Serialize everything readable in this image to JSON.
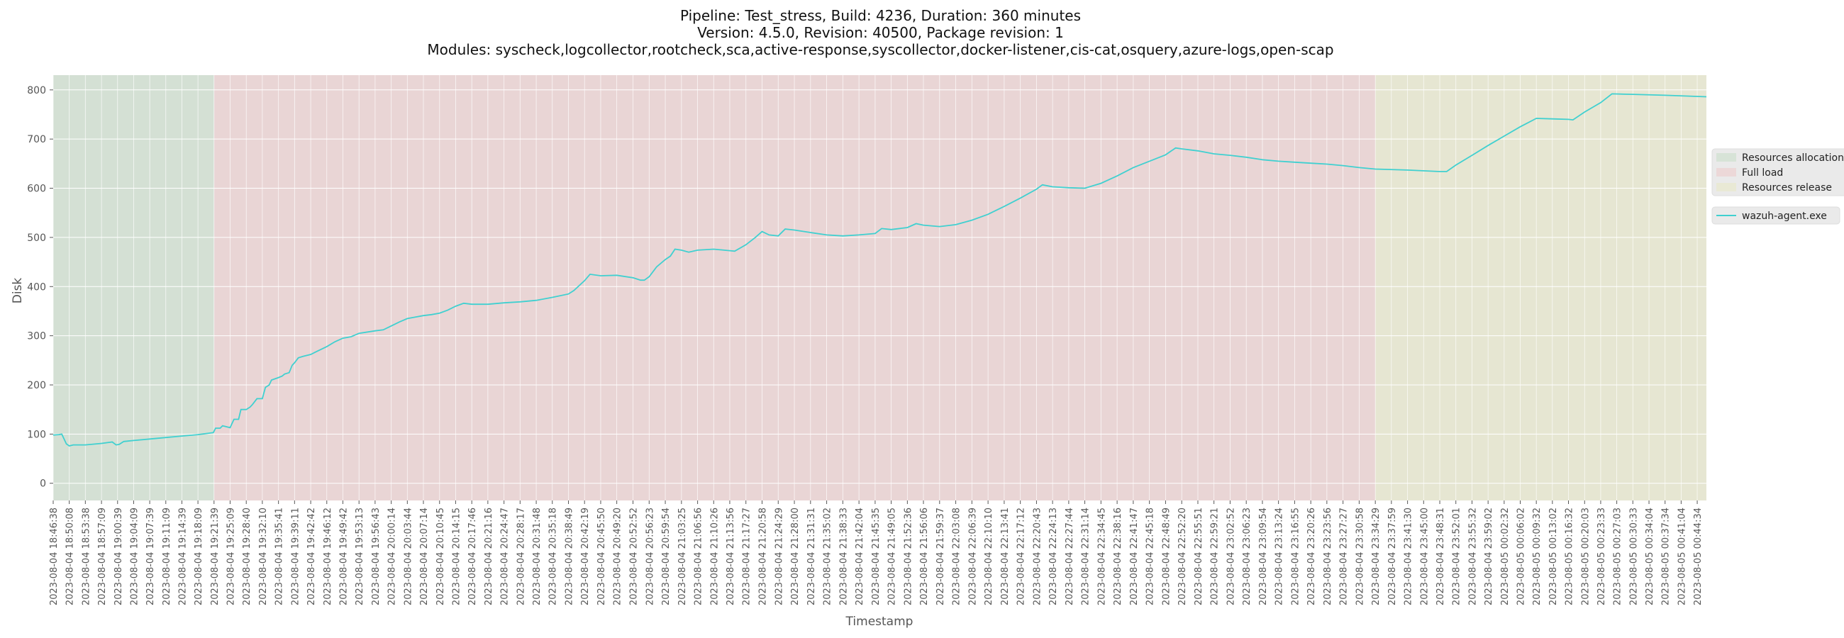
{
  "chart_data": {
    "type": "line",
    "title_lines": [
      "Pipeline: Test_stress, Build: 4236, Duration: 360 minutes",
      "Version: 4.5.0, Revision: 40500, Package revision: 1",
      "Modules: syscheck,logcollector,rootcheck,sca,active-response,syscollector,docker-listener,cis-cat,osquery,azure-logs,open-scap"
    ],
    "xlabel": "Timestamp",
    "ylabel": "Disk",
    "ylim": [
      -35,
      830
    ],
    "yticks": [
      0,
      100,
      200,
      300,
      400,
      500,
      600,
      700,
      800
    ],
    "grid": true,
    "x_start": "2023-08-04 18:46:38",
    "x_end": "2023-08-05 00:46:34",
    "x_tick_labels": [
      "2023-08-04 18:46:38",
      "2023-08-04 18:50:08",
      "2023-08-04 18:53:38",
      "2023-08-04 18:57:09",
      "2023-08-04 19:00:39",
      "2023-08-04 19:04:09",
      "2023-08-04 19:07:39",
      "2023-08-04 19:11:09",
      "2023-08-04 19:14:39",
      "2023-08-04 19:18:09",
      "2023-08-04 19:21:39",
      "2023-08-04 19:25:09",
      "2023-08-04 19:28:40",
      "2023-08-04 19:32:10",
      "2023-08-04 19:35:41",
      "2023-08-04 19:39:11",
      "2023-08-04 19:42:42",
      "2023-08-04 19:46:12",
      "2023-08-04 19:49:42",
      "2023-08-04 19:53:13",
      "2023-08-04 19:56:43",
      "2023-08-04 20:00:14",
      "2023-08-04 20:03:44",
      "2023-08-04 20:07:14",
      "2023-08-04 20:10:45",
      "2023-08-04 20:14:15",
      "2023-08-04 20:17:46",
      "2023-08-04 20:21:16",
      "2023-08-04 20:24:47",
      "2023-08-04 20:28:17",
      "2023-08-04 20:31:48",
      "2023-08-04 20:35:18",
      "2023-08-04 20:38:49",
      "2023-08-04 20:42:19",
      "2023-08-04 20:45:50",
      "2023-08-04 20:49:20",
      "2023-08-04 20:52:52",
      "2023-08-04 20:56:23",
      "2023-08-04 20:59:54",
      "2023-08-04 21:03:25",
      "2023-08-04 21:06:56",
      "2023-08-04 21:10:26",
      "2023-08-04 21:13:56",
      "2023-08-04 21:17:27",
      "2023-08-04 21:20:58",
      "2023-08-04 21:24:29",
      "2023-08-04 21:28:00",
      "2023-08-04 21:31:31",
      "2023-08-04 21:35:02",
      "2023-08-04 21:38:33",
      "2023-08-04 21:42:04",
      "2023-08-04 21:45:35",
      "2023-08-04 21:49:05",
      "2023-08-04 21:52:36",
      "2023-08-04 21:56:06",
      "2023-08-04 21:59:37",
      "2023-08-04 22:03:08",
      "2023-08-04 22:06:39",
      "2023-08-04 22:10:10",
      "2023-08-04 22:13:41",
      "2023-08-04 22:17:12",
      "2023-08-04 22:20:43",
      "2023-08-04 22:24:13",
      "2023-08-04 22:27:44",
      "2023-08-04 22:31:14",
      "2023-08-04 22:34:45",
      "2023-08-04 22:38:16",
      "2023-08-04 22:41:47",
      "2023-08-04 22:45:18",
      "2023-08-04 22:48:49",
      "2023-08-04 22:52:20",
      "2023-08-04 22:55:51",
      "2023-08-04 22:59:21",
      "2023-08-04 23:02:52",
      "2023-08-04 23:06:23",
      "2023-08-04 23:09:54",
      "2023-08-04 23:13:24",
      "2023-08-04 23:16:55",
      "2023-08-04 23:20:26",
      "2023-08-04 23:23:56",
      "2023-08-04 23:27:27",
      "2023-08-04 23:30:58",
      "2023-08-04 23:34:29",
      "2023-08-04 23:37:59",
      "2023-08-04 23:41:30",
      "2023-08-04 23:45:00",
      "2023-08-04 23:48:31",
      "2023-08-04 23:52:01",
      "2023-08-04 23:55:32",
      "2023-08-04 23:59:02",
      "2023-08-05 00:02:32",
      "2023-08-05 00:06:02",
      "2023-08-05 00:09:32",
      "2023-08-05 00:13:02",
      "2023-08-05 00:16:32",
      "2023-08-05 00:20:03",
      "2023-08-05 00:23:33",
      "2023-08-05 00:27:03",
      "2023-08-05 00:30:33",
      "2023-08-05 00:34:04",
      "2023-08-05 00:37:34",
      "2023-08-05 00:41:04",
      "2023-08-05 00:44:34"
    ],
    "phases": [
      {
        "name": "Resources allocation",
        "start": "2023-08-04 18:46:38",
        "end": "2023-08-04 19:21:39",
        "color": "#b5d8b5"
      },
      {
        "name": "Full load",
        "start": "2023-08-04 19:21:39",
        "end": "2023-08-04 23:34:29",
        "color": "#f0b8b8"
      },
      {
        "name": "Resources release",
        "start": "2023-08-04 23:34:29",
        "end": "2023-08-05 00:46:34",
        "color": "#e8e8b0"
      }
    ],
    "series": [
      {
        "name": "wazuh-agent.exe",
        "color": "#40d0d0",
        "points": [
          [
            "2023-08-04 18:46:38",
            98
          ],
          [
            "2023-08-04 18:47:50",
            99
          ],
          [
            "2023-08-04 18:48:30",
            100
          ],
          [
            "2023-08-04 18:49:30",
            80
          ],
          [
            "2023-08-04 18:50:08",
            76
          ],
          [
            "2023-08-04 18:51:00",
            78
          ],
          [
            "2023-08-04 18:53:38",
            78
          ],
          [
            "2023-08-04 18:57:09",
            81
          ],
          [
            "2023-08-04 18:59:30",
            84
          ],
          [
            "2023-08-04 19:00:20",
            78
          ],
          [
            "2023-08-04 19:01:00",
            79
          ],
          [
            "2023-08-04 19:02:00",
            85
          ],
          [
            "2023-08-04 19:04:09",
            87
          ],
          [
            "2023-08-04 19:07:39",
            90
          ],
          [
            "2023-08-04 19:11:09",
            93
          ],
          [
            "2023-08-04 19:14:39",
            96
          ],
          [
            "2023-08-04 19:18:09",
            99
          ],
          [
            "2023-08-04 19:21:30",
            103
          ],
          [
            "2023-08-04 19:22:00",
            112
          ],
          [
            "2023-08-04 19:23:00",
            112
          ],
          [
            "2023-08-04 19:23:30",
            117
          ],
          [
            "2023-08-04 19:25:09",
            113
          ],
          [
            "2023-08-04 19:26:00",
            130
          ],
          [
            "2023-08-04 19:27:00",
            130
          ],
          [
            "2023-08-04 19:27:30",
            150
          ],
          [
            "2023-08-04 19:28:40",
            150
          ],
          [
            "2023-08-04 19:29:30",
            155
          ],
          [
            "2023-08-04 19:30:00",
            160
          ],
          [
            "2023-08-04 19:31:00",
            172
          ],
          [
            "2023-08-04 19:32:10",
            172
          ],
          [
            "2023-08-04 19:32:50",
            195
          ],
          [
            "2023-08-04 19:33:40",
            200
          ],
          [
            "2023-08-04 19:34:10",
            210
          ],
          [
            "2023-08-04 19:35:41",
            215
          ],
          [
            "2023-08-04 19:36:30",
            218
          ],
          [
            "2023-08-04 19:37:00",
            222
          ],
          [
            "2023-08-04 19:38:00",
            225
          ],
          [
            "2023-08-04 19:38:40",
            240
          ],
          [
            "2023-08-04 19:39:11",
            245
          ],
          [
            "2023-08-04 19:40:00",
            255
          ],
          [
            "2023-08-04 19:41:00",
            258
          ],
          [
            "2023-08-04 19:42:42",
            262
          ],
          [
            "2023-08-04 19:44:00",
            268
          ],
          [
            "2023-08-04 19:46:12",
            278
          ],
          [
            "2023-08-04 19:48:00",
            288
          ],
          [
            "2023-08-04 19:49:42",
            295
          ],
          [
            "2023-08-04 19:51:30",
            298
          ],
          [
            "2023-08-04 19:53:13",
            305
          ],
          [
            "2023-08-04 19:56:43",
            310
          ],
          [
            "2023-08-04 19:58:30",
            312
          ],
          [
            "2023-08-04 20:00:14",
            320
          ],
          [
            "2023-08-04 20:02:00",
            328
          ],
          [
            "2023-08-04 20:03:44",
            335
          ],
          [
            "2023-08-04 20:05:30",
            338
          ],
          [
            "2023-08-04 20:07:14",
            341
          ],
          [
            "2023-08-04 20:09:00",
            343
          ],
          [
            "2023-08-04 20:10:45",
            346
          ],
          [
            "2023-08-04 20:12:30",
            352
          ],
          [
            "2023-08-04 20:14:15",
            360
          ],
          [
            "2023-08-04 20:16:00",
            366
          ],
          [
            "2023-08-04 20:17:46",
            364
          ],
          [
            "2023-08-04 20:21:16",
            364
          ],
          [
            "2023-08-04 20:24:47",
            367
          ],
          [
            "2023-08-04 20:28:17",
            369
          ],
          [
            "2023-08-04 20:31:48",
            372
          ],
          [
            "2023-08-04 20:35:18",
            378
          ],
          [
            "2023-08-04 20:38:49",
            385
          ],
          [
            "2023-08-04 20:40:00",
            392
          ],
          [
            "2023-08-04 20:42:19",
            412
          ],
          [
            "2023-08-04 20:43:30",
            425
          ],
          [
            "2023-08-04 20:45:50",
            422
          ],
          [
            "2023-08-04 20:49:20",
            423
          ],
          [
            "2023-08-04 20:52:52",
            418
          ],
          [
            "2023-08-04 20:54:30",
            413
          ],
          [
            "2023-08-04 20:55:20",
            413
          ],
          [
            "2023-08-04 20:56:23",
            420
          ],
          [
            "2023-08-04 20:58:00",
            440
          ],
          [
            "2023-08-04 20:59:54",
            455
          ],
          [
            "2023-08-04 21:01:00",
            462
          ],
          [
            "2023-08-04 21:02:00",
            476
          ],
          [
            "2023-08-04 21:03:25",
            474
          ],
          [
            "2023-08-04 21:05:00",
            470
          ],
          [
            "2023-08-04 21:06:56",
            474
          ],
          [
            "2023-08-04 21:10:26",
            476
          ],
          [
            "2023-08-04 21:13:56",
            473
          ],
          [
            "2023-08-04 21:15:00",
            472
          ],
          [
            "2023-08-04 21:17:27",
            485
          ],
          [
            "2023-08-04 21:19:30",
            500
          ],
          [
            "2023-08-04 21:20:58",
            512
          ],
          [
            "2023-08-04 21:22:30",
            505
          ],
          [
            "2023-08-04 21:24:29",
            503
          ],
          [
            "2023-08-04 21:26:00",
            517
          ],
          [
            "2023-08-04 21:28:00",
            515
          ],
          [
            "2023-08-04 21:31:31",
            510
          ],
          [
            "2023-08-04 21:35:02",
            505
          ],
          [
            "2023-08-04 21:38:33",
            503
          ],
          [
            "2023-08-04 21:42:04",
            505
          ],
          [
            "2023-08-04 21:45:35",
            508
          ],
          [
            "2023-08-04 21:47:00",
            518
          ],
          [
            "2023-08-04 21:49:05",
            516
          ],
          [
            "2023-08-04 21:52:36",
            520
          ],
          [
            "2023-08-04 21:54:30",
            528
          ],
          [
            "2023-08-04 21:56:06",
            525
          ],
          [
            "2023-08-04 21:59:37",
            522
          ],
          [
            "2023-08-04 22:03:08",
            526
          ],
          [
            "2023-08-04 22:06:39",
            535
          ],
          [
            "2023-08-04 22:10:10",
            547
          ],
          [
            "2023-08-04 22:13:41",
            563
          ],
          [
            "2023-08-04 22:17:12",
            580
          ],
          [
            "2023-08-04 22:20:43",
            598
          ],
          [
            "2023-08-04 22:22:00",
            607
          ],
          [
            "2023-08-04 22:24:13",
            603
          ],
          [
            "2023-08-04 22:27:44",
            601
          ],
          [
            "2023-08-04 22:31:14",
            600
          ],
          [
            "2023-08-04 22:34:45",
            610
          ],
          [
            "2023-08-04 22:38:16",
            625
          ],
          [
            "2023-08-04 22:41:47",
            642
          ],
          [
            "2023-08-04 22:45:18",
            655
          ],
          [
            "2023-08-04 22:48:49",
            668
          ],
          [
            "2023-08-04 22:51:00",
            682
          ],
          [
            "2023-08-04 22:52:20",
            680
          ],
          [
            "2023-08-04 22:55:51",
            676
          ],
          [
            "2023-08-04 22:59:21",
            670
          ],
          [
            "2023-08-04 23:02:52",
            667
          ],
          [
            "2023-08-04 23:06:23",
            663
          ],
          [
            "2023-08-04 23:09:54",
            658
          ],
          [
            "2023-08-04 23:13:24",
            655
          ],
          [
            "2023-08-04 23:16:55",
            653
          ],
          [
            "2023-08-04 23:20:26",
            651
          ],
          [
            "2023-08-04 23:23:56",
            649
          ],
          [
            "2023-08-04 23:27:27",
            646
          ],
          [
            "2023-08-04 23:30:58",
            642
          ],
          [
            "2023-08-04 23:34:29",
            639
          ],
          [
            "2023-08-04 23:41:30",
            637
          ],
          [
            "2023-08-04 23:48:31",
            634
          ],
          [
            "2023-08-04 23:50:00",
            634
          ],
          [
            "2023-08-04 23:52:01",
            647
          ],
          [
            "2023-08-04 23:55:32",
            667
          ],
          [
            "2023-08-04 23:59:02",
            687
          ],
          [
            "2023-08-05 00:02:32",
            706
          ],
          [
            "2023-08-05 00:06:02",
            725
          ],
          [
            "2023-08-05 00:09:32",
            742
          ],
          [
            "2023-08-05 00:13:02",
            741
          ],
          [
            "2023-08-05 00:16:32",
            740
          ],
          [
            "2023-08-05 00:17:30",
            739
          ],
          [
            "2023-08-05 00:20:03",
            755
          ],
          [
            "2023-08-05 00:23:33",
            774
          ],
          [
            "2023-08-05 00:26:00",
            792
          ],
          [
            "2023-08-05 00:30:33",
            791
          ],
          [
            "2023-08-05 00:37:34",
            789
          ],
          [
            "2023-08-05 00:46:34",
            786
          ]
        ]
      }
    ],
    "legend": {
      "placement": "right",
      "phase_entries": [
        "Resources allocation",
        "Full load",
        "Resources release"
      ],
      "series_entries": [
        "wazuh-agent.exe"
      ]
    }
  }
}
